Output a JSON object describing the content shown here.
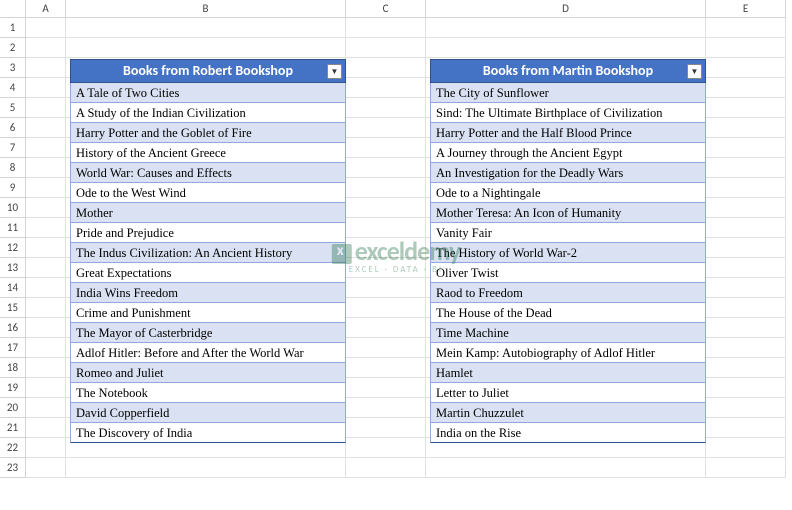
{
  "columns": [
    "",
    "A",
    "B",
    "C",
    "D",
    "E"
  ],
  "rowCount": 23,
  "tables": {
    "left": {
      "header": "Books from Robert Bookshop",
      "header_bg": "#4472c4",
      "rows": [
        "A Tale of Two Cities",
        "A Study of the Indian Civilization",
        "Harry Potter and the Goblet of Fire",
        "History of the Ancient Greece",
        "World War: Causes and Effects",
        "Ode to the West Wind",
        "Mother",
        "Pride and Prejudice",
        "The Indus Civilization: An Ancient History",
        "Great Expectations",
        "India Wins Freedom",
        "Crime and Punishment",
        "The Mayor of Casterbridge",
        "Adlof Hitler: Before and After the World War",
        "Romeo and Juliet",
        "The Notebook",
        "David Copperfield",
        "The Discovery of India"
      ],
      "even_color": "#d9e1f2",
      "odd_color": "#ffffff"
    },
    "right": {
      "header": "Books from Martin Bookshop",
      "header_bg": "#4472c4",
      "rows": [
        "The City of Sunflower",
        "Sind: The Ultimate Birthplace of Civilization",
        "Harry Potter and the Half Blood Prince",
        "A Journey through the Ancient Egypt",
        "An Investigation for the Deadly Wars",
        "Ode to a Nightingale",
        "Mother Teresa: An Icon of Humanity",
        "Vanity Fair",
        "The History of World War-2",
        "Oliver Twist",
        "Raod to Freedom",
        "The House of the Dead",
        "Time Machine",
        "Mein Kamp: Autobiography of Adlof Hitler",
        "Hamlet",
        "Letter to Juliet",
        "Martin Chuzzulet",
        "India on the Rise"
      ],
      "even_color": "#d9e1f2",
      "odd_color": "#ffffff"
    }
  },
  "watermark": {
    "brand": "exceldemy",
    "tagline": "EXCEL · DATA · BI"
  }
}
